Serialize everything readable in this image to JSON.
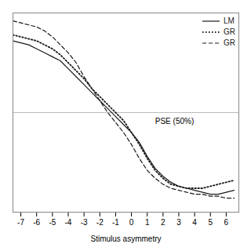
{
  "chart_data": {
    "type": "line",
    "title": "",
    "xlabel": "Stimulus asymmetry",
    "x": [
      -7.5,
      -7.0,
      -6.5,
      -6.0,
      -5.5,
      -5.0,
      -4.5,
      -4.0,
      -3.5,
      -3.0,
      -2.5,
      -2.0,
      -1.5,
      -1.0,
      -0.5,
      0.0,
      0.5,
      1.0,
      1.5,
      2.0,
      2.5,
      3.0,
      3.5,
      4.0,
      4.5,
      5.0,
      5.5,
      6.0,
      6.5
    ],
    "series": [
      {
        "name": "LM",
        "color": "#1a1a1a",
        "line_style": "solid",
        "values": [
          0.86,
          0.85,
          0.84,
          0.82,
          0.8,
          0.78,
          0.76,
          0.72,
          0.68,
          0.64,
          0.6,
          0.56,
          0.52,
          0.48,
          0.44,
          0.4,
          0.35,
          0.28,
          0.22,
          0.18,
          0.15,
          0.13,
          0.12,
          0.11,
          0.1,
          0.09,
          0.09,
          0.1,
          0.11
        ]
      },
      {
        "name": "GR",
        "color": "#1a1a1a",
        "line_style": "dotted",
        "values": [
          0.89,
          0.88,
          0.87,
          0.86,
          0.84,
          0.82,
          0.79,
          0.75,
          0.71,
          0.67,
          0.62,
          0.58,
          0.54,
          0.5,
          0.46,
          0.4,
          0.34,
          0.27,
          0.21,
          0.17,
          0.14,
          0.13,
          0.12,
          0.12,
          0.12,
          0.13,
          0.14,
          0.15,
          0.16
        ]
      },
      {
        "name": "GR",
        "color": "#1a1a1a",
        "line_style": "dashed",
        "values": [
          0.96,
          0.95,
          0.94,
          0.93,
          0.91,
          0.88,
          0.84,
          0.8,
          0.75,
          0.68,
          0.62,
          0.56,
          0.5,
          0.45,
          0.4,
          0.34,
          0.27,
          0.21,
          0.17,
          0.14,
          0.12,
          0.11,
          0.1,
          0.09,
          0.09,
          0.08,
          0.08,
          0.07,
          0.07
        ]
      }
    ],
    "xlim": [
      -7.5,
      6.8
    ],
    "xticks": [
      -7,
      -6,
      -5,
      -4,
      -3,
      -2,
      -1,
      0,
      1,
      2,
      3,
      4,
      5,
      6
    ],
    "ylim": [
      0,
      1
    ],
    "yticks": [],
    "tick_labels": "x",
    "grid": false,
    "legend": "upper right",
    "hlines": [
      {
        "y": 0.5,
        "color": "#aaaaaa"
      }
    ],
    "annotations": [
      {
        "text": "PSE (50%)",
        "x": 1.5,
        "y": 0.47
      }
    ]
  }
}
